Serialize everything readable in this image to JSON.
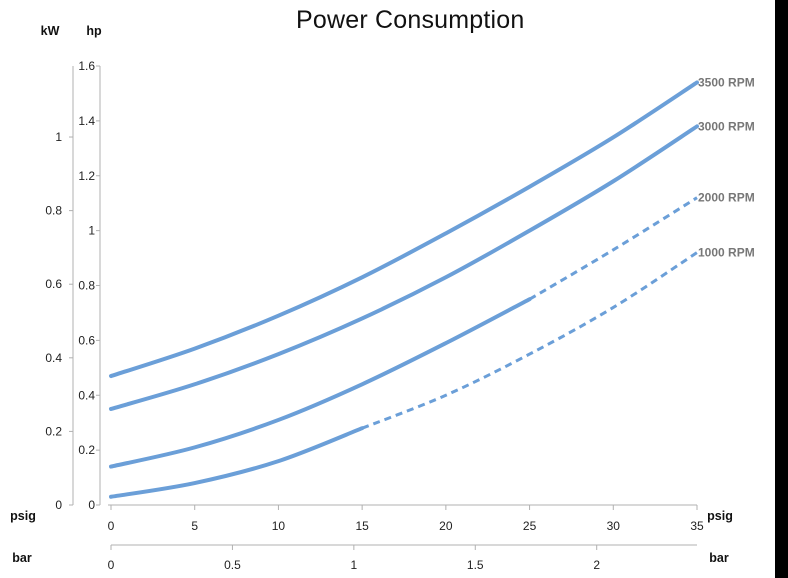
{
  "chart_data": {
    "type": "line",
    "title": "Power Consumption",
    "units": {
      "kw": "kW",
      "hp": "hp",
      "psig": "psig",
      "bar": "bar"
    },
    "axes": {
      "x_psig": {
        "label": "psig",
        "range": [
          0,
          35
        ],
        "ticks": [
          "0",
          "5",
          "10",
          "15",
          "20",
          "25",
          "30",
          "35"
        ]
      },
      "x_bar": {
        "label": "bar",
        "range": [
          0,
          2.413
        ],
        "ticks": [
          "0",
          "0.5",
          "1",
          "1.5",
          "2"
        ]
      },
      "y_hp": {
        "label": "hp",
        "range": [
          0,
          1.6
        ],
        "ticks": [
          "0",
          "0.2",
          "0.4",
          "0.6",
          "0.8",
          "1",
          "1.2",
          "1.4",
          "1.6"
        ]
      },
      "y_kw": {
        "label": "kW",
        "range": [
          0,
          1.193
        ],
        "ticks": [
          "0",
          "0.2",
          "0.4",
          "0.6",
          "0.8",
          "1"
        ]
      }
    },
    "x": [
      0,
      5,
      10,
      15,
      20,
      25,
      30,
      35
    ],
    "series": [
      {
        "name": "3500 RPM",
        "color": "#6b9fd8",
        "solid_to": 35,
        "values": [
          0.47,
          0.57,
          0.69,
          0.83,
          0.99,
          1.16,
          1.34,
          1.54
        ]
      },
      {
        "name": "3000 RPM",
        "color": "#6b9fd8",
        "solid_to": 35,
        "values": [
          0.35,
          0.44,
          0.55,
          0.68,
          0.83,
          1.0,
          1.18,
          1.38
        ]
      },
      {
        "name": "2000 RPM",
        "color": "#6b9fd8",
        "solid_to": 25,
        "values": [
          0.14,
          0.21,
          0.31,
          0.44,
          0.59,
          0.75,
          0.93,
          1.12
        ]
      },
      {
        "name": "1000 RPM",
        "color": "#6b9fd8",
        "solid_to": 15,
        "values": [
          0.03,
          0.08,
          0.16,
          0.28,
          0.4,
          0.55,
          0.72,
          0.92
        ]
      }
    ],
    "grid": false,
    "legend": "labels at right end of each line"
  }
}
